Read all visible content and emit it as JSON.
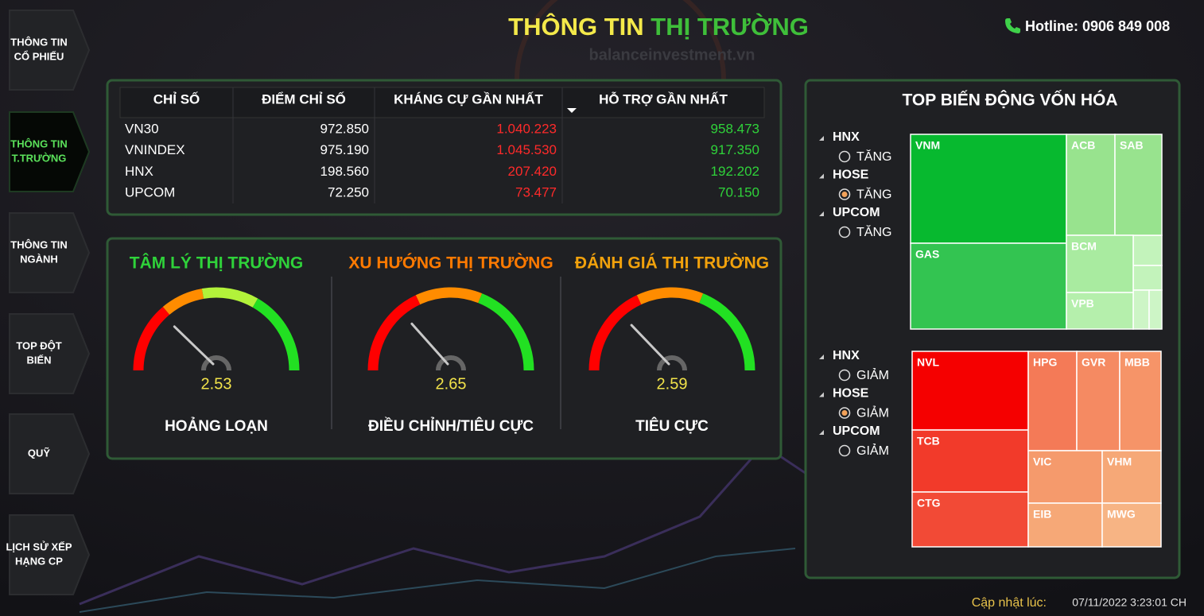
{
  "header": {
    "title_part1": "THÔNG TIN",
    "title_part2": "THỊ TRƯỜNG",
    "watermark": "balanceinvestment.vn",
    "hotline": "Hotline: 0906 849 008"
  },
  "sidebar": [
    {
      "lines": [
        "THÔNG TIN",
        "CỔ PHIẾU"
      ]
    },
    {
      "lines": [
        "THÔNG TIN",
        "T.TRƯỜNG"
      ]
    },
    {
      "lines": [
        "THÔNG TIN",
        "NGÀNH"
      ]
    },
    {
      "lines": [
        "TOP ĐỘT",
        "BIẾN"
      ]
    },
    {
      "lines": [
        "QUỸ"
      ]
    },
    {
      "lines": [
        "LỊCH SỬ XẾP",
        "HẠNG CP"
      ]
    }
  ],
  "active_tab": 1,
  "table": {
    "columns": [
      "CHỈ SỐ",
      "ĐIỂM CHỈ SỐ",
      "KHÁNG CỰ GẦN NHẤT",
      "HỖ TRỢ GẦN NHẤT"
    ],
    "rows": [
      [
        "VN30",
        "972.850",
        "1.040.223",
        "958.473"
      ],
      [
        "VNINDEX",
        "975.190",
        "1.045.530",
        "917.350"
      ],
      [
        "HNX",
        "198.560",
        "207.420",
        "192.202"
      ],
      [
        "UPCOM",
        "72.250",
        "73.477",
        "70.150"
      ]
    ]
  },
  "gauges": [
    {
      "title": "TÂM LÝ THỊ TRƯỜNG",
      "value": 2.53,
      "status": "HOẢNG LOẠN"
    },
    {
      "title": "XU HƯỚNG THỊ TRƯỜNG",
      "value": 2.65,
      "status": "ĐIỀU CHỈNH/TIÊU CỰC"
    },
    {
      "title": "ĐÁNH GIÁ THỊ TRƯỜNG",
      "value": 2.59,
      "status": "TIÊU CỰC"
    }
  ],
  "treemap": {
    "title": "TOP BIẾN ĐỘNG VỐN HÓA",
    "up": {
      "filters": [
        {
          "exchange": "HNX",
          "option": "TĂNG"
        },
        {
          "exchange": "HOSE",
          "option": "TĂNG"
        },
        {
          "exchange": "UPCOM",
          "option": "TĂNG"
        }
      ],
      "selected": 1,
      "tiles": [
        "VNM",
        "ACB",
        "SAB",
        "GAS",
        "BCM",
        "VPB"
      ]
    },
    "down": {
      "filters": [
        {
          "exchange": "HNX",
          "option": "GIẢM"
        },
        {
          "exchange": "HOSE",
          "option": "GIẢM"
        },
        {
          "exchange": "UPCOM",
          "option": "GIẢM"
        }
      ],
      "selected": 1,
      "tiles": [
        "NVL",
        "TCB",
        "CTG",
        "HPG",
        "GVR",
        "MBB",
        "VIC",
        "VHM",
        "EIB",
        "MWG"
      ]
    }
  },
  "footer": {
    "label": "Cập nhật lúc:",
    "timestamp": "07/11/2022 3:23:01 CH"
  }
}
